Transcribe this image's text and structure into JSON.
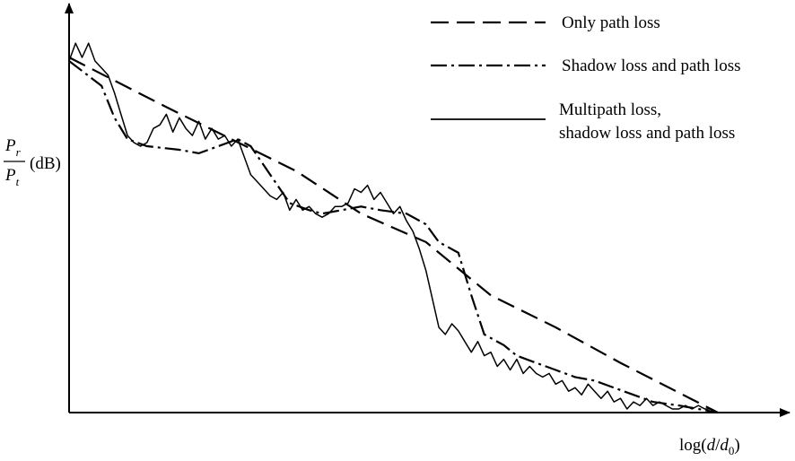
{
  "chart_data": {
    "type": "line",
    "title": "",
    "xlabel": {
      "prefix": "log(",
      "var1": "d",
      "slash": "/",
      "var2": "d",
      "sub": "0",
      "suffix": ")"
    },
    "ylabel": {
      "num_var": "P",
      "num_sub": "r",
      "den_var": "P",
      "den_sub": "t",
      "unit": "(dB)"
    },
    "xlim": [
      0,
      100
    ],
    "ylim": [
      0,
      100
    ],
    "grid": false,
    "legend": {
      "position": "top-right"
    },
    "series": [
      {
        "name": "Only path loss",
        "style": "dashed",
        "x": [
          0,
          15,
          25,
          35,
          45,
          55,
          65,
          75,
          85,
          100
        ],
        "y": [
          100,
          86,
          77,
          68,
          56,
          48,
          33,
          24,
          14,
          0
        ]
      },
      {
        "name": "Shadow loss and path loss",
        "style": "dashdot",
        "x": [
          0,
          5,
          7,
          9,
          12,
          17,
          20,
          23,
          26,
          28,
          31,
          34,
          37,
          39,
          42,
          45,
          48,
          52,
          55,
          57,
          60,
          62,
          64,
          67,
          69,
          72,
          75,
          78,
          81,
          84,
          87,
          90,
          94,
          97,
          100
        ],
        "y": [
          99,
          92,
          83,
          77,
          75,
          74,
          73,
          75,
          77,
          75,
          67,
          59,
          57,
          56,
          57,
          58,
          57,
          56,
          53,
          48,
          45,
          33,
          22,
          19,
          16,
          14,
          12,
          10,
          9,
          7,
          5,
          3,
          2,
          1,
          0
        ]
      },
      {
        "name": "Multipath loss, shadow loss and path loss",
        "style": "solid",
        "x": [
          0,
          1,
          2,
          3,
          4,
          5,
          6,
          7,
          8,
          9,
          10,
          11,
          12,
          13,
          14,
          15,
          16,
          17,
          18,
          19,
          20,
          21,
          22,
          23,
          24,
          25,
          26,
          27,
          28,
          29,
          30,
          31,
          32,
          33,
          34,
          35,
          36,
          37,
          38,
          39,
          40,
          41,
          42,
          43,
          44,
          45,
          46,
          47,
          48,
          49,
          50,
          51,
          52,
          53,
          54,
          55,
          56,
          57,
          58,
          59,
          60,
          61,
          62,
          63,
          64,
          65,
          66,
          67,
          68,
          69,
          70,
          71,
          72,
          73,
          74,
          75,
          76,
          77,
          78,
          79,
          80,
          81,
          82,
          83,
          84,
          85,
          86,
          87,
          88,
          89,
          90,
          91,
          92,
          93,
          94,
          95,
          96,
          97,
          98,
          99,
          100
        ],
        "y": [
          99,
          104,
          100,
          104,
          99,
          97,
          95,
          90,
          84,
          78,
          76,
          75,
          76,
          80,
          81,
          84,
          79,
          83,
          80,
          78,
          82,
          77,
          80,
          77,
          78,
          75,
          77,
          72,
          67,
          65,
          63,
          61,
          60,
          62,
          57,
          60,
          57,
          58,
          56,
          55,
          56,
          58,
          58,
          59,
          63,
          62,
          64,
          60,
          62,
          59,
          56,
          58,
          54,
          51,
          46,
          40,
          32,
          24,
          22,
          25,
          23,
          20,
          17,
          20,
          16,
          17,
          13,
          15,
          12,
          15,
          11,
          13,
          11,
          10,
          11,
          8,
          9,
          6,
          7,
          5,
          8,
          6,
          4,
          6,
          3,
          4,
          1,
          3,
          2,
          4,
          2,
          3,
          2,
          1,
          1,
          2,
          1,
          2,
          1,
          1,
          0
        ]
      }
    ]
  }
}
